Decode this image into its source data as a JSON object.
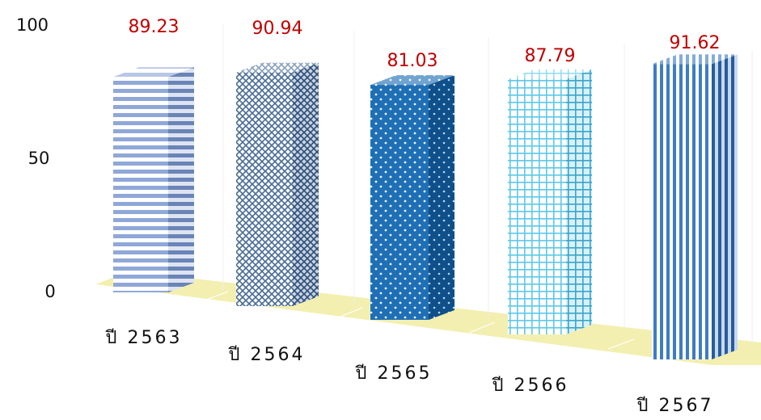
{
  "chart_data": {
    "type": "bar",
    "style": "3d-columns-perspective",
    "categories": [
      "ปี 2563",
      "ปี 2564",
      "ปี 2565",
      "ปี 2566",
      "ปี 2567"
    ],
    "values": [
      89.23,
      90.94,
      81.03,
      87.79,
      91.62
    ],
    "value_labels": [
      "89.23",
      "90.94",
      "81.03",
      "87.79",
      "91.62"
    ],
    "y_ticks": [
      "100",
      "50",
      "0"
    ],
    "ylim": [
      0,
      100
    ],
    "grid": false,
    "legend": "none",
    "title": "",
    "xlabel": "",
    "ylabel": "",
    "floor_color": "#f3efb0",
    "value_label_color": "#c00000",
    "bar_patterns": [
      {
        "name": "horizontal-stripes",
        "color": "#8fa8d8"
      },
      {
        "name": "diamond-weave",
        "color": "#5b7ea8"
      },
      {
        "name": "polka-dot",
        "color": "#1f6fb5"
      },
      {
        "name": "grid",
        "color": "#5ec8e8"
      },
      {
        "name": "vertical-stripes",
        "color": "#3e7cc4"
      }
    ]
  }
}
